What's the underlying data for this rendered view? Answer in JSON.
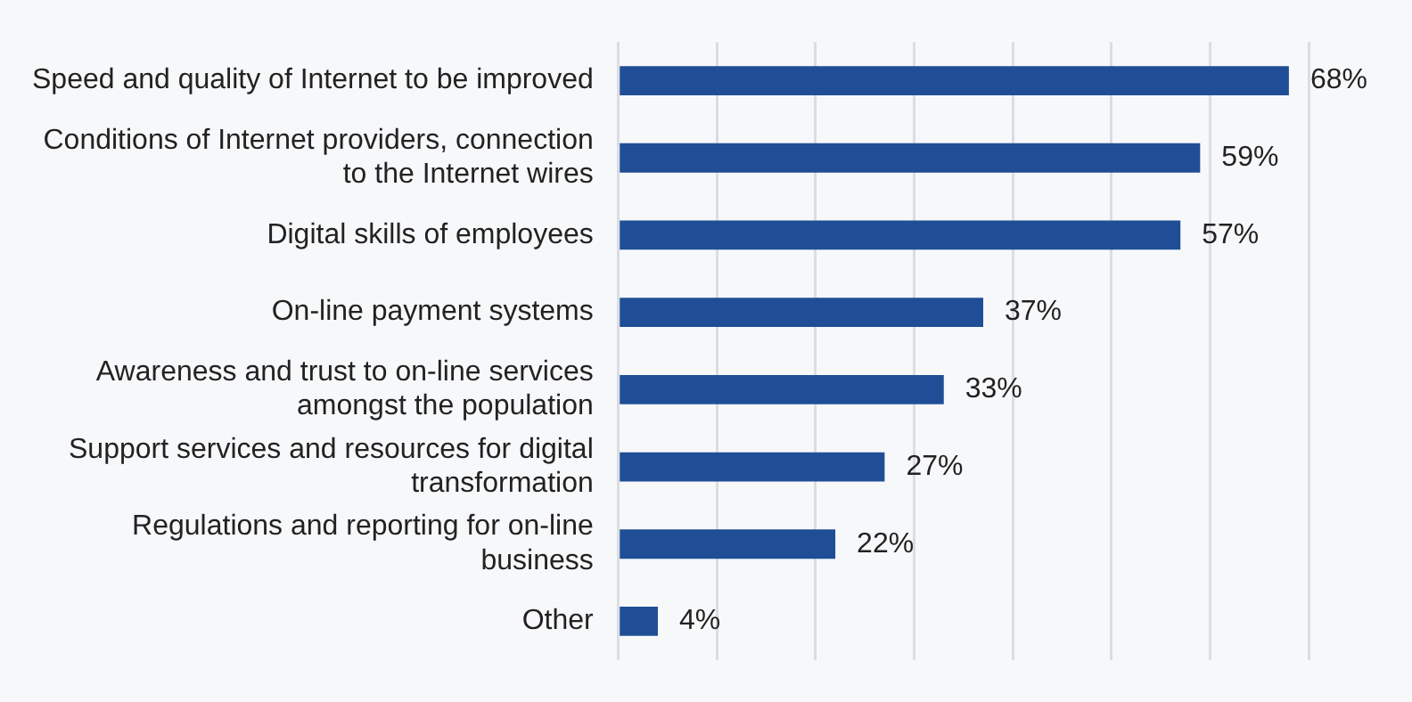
{
  "chart_data": {
    "type": "bar",
    "orientation": "horizontal",
    "categories": [
      "Speed and quality of Internet to be improved",
      "Conditions of Internet providers, connection to the Internet wires",
      "Digital skills of employees",
      "On-line payment systems",
      "Awareness and trust to on-line services amongst the population",
      "Support services and resources for digital transformation",
      "Regulations and reporting for on-line business",
      "Other"
    ],
    "values": [
      68,
      59,
      57,
      37,
      33,
      27,
      22,
      4
    ],
    "value_labels": [
      "68%",
      "59%",
      "57%",
      "37%",
      "33%",
      "27%",
      "22%",
      "4%"
    ],
    "color": "#1f4e96",
    "xticks": [
      {
        "value": 0,
        "label": null
      },
      {
        "value": 10,
        "label": null
      },
      {
        "value": 20,
        "label": null
      },
      {
        "value": 30,
        "label": null
      },
      {
        "value": 40,
        "label": null
      },
      {
        "value": 50,
        "label": null
      },
      {
        "value": 60,
        "label": null
      },
      {
        "value": 70,
        "label": null
      }
    ],
    "grid": "x",
    "tick_labels": "y"
  }
}
